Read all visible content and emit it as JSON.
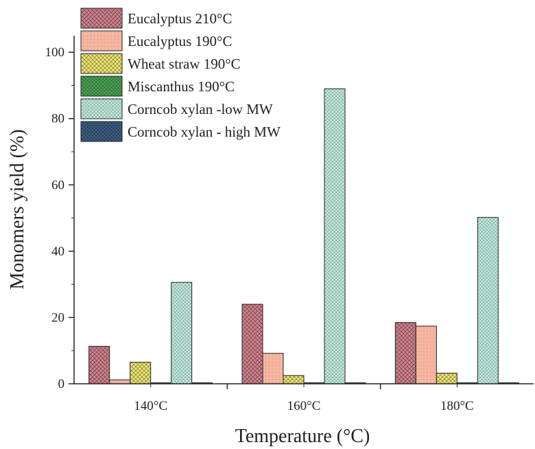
{
  "chart_data": {
    "type": "bar",
    "title": "",
    "xlabel": "Temperature (°C)",
    "ylabel": "Monomers yield (%)",
    "categories": [
      "140°C",
      "160°C",
      "180°C"
    ],
    "ylim": [
      0,
      105
    ],
    "yticks": [
      0,
      20,
      40,
      60,
      80,
      100
    ],
    "grid": false,
    "legend_position": "top-left",
    "series": [
      {
        "name": "Eucalyptus 210°C",
        "values": [
          11.3,
          24.0,
          18.5
        ],
        "color": "#c9858f",
        "pattern": "crosshatch-dark"
      },
      {
        "name": "Eucalyptus 190°C",
        "values": [
          1.2,
          9.2,
          17.4
        ],
        "color": "#f4b6a1",
        "pattern": "dots"
      },
      {
        "name": "Wheat straw 190°C",
        "values": [
          6.5,
          2.5,
          3.2
        ],
        "color": "#eee47c",
        "pattern": "diagonal"
      },
      {
        "name": "Miscanthus 190°C",
        "values": [
          0.3,
          0.3,
          0.3
        ],
        "color": "#4e9f55",
        "pattern": "crosshatch"
      },
      {
        "name": "Corncob xylan -low MW",
        "values": [
          30.6,
          89.0,
          50.2
        ],
        "color": "#c5e6dc",
        "pattern": "crosshatch-fine"
      },
      {
        "name": "Corncob xylan - high MW",
        "values": [
          0.3,
          0.3,
          0.3
        ],
        "color": "#27405e",
        "pattern": "crosshatch"
      }
    ]
  }
}
